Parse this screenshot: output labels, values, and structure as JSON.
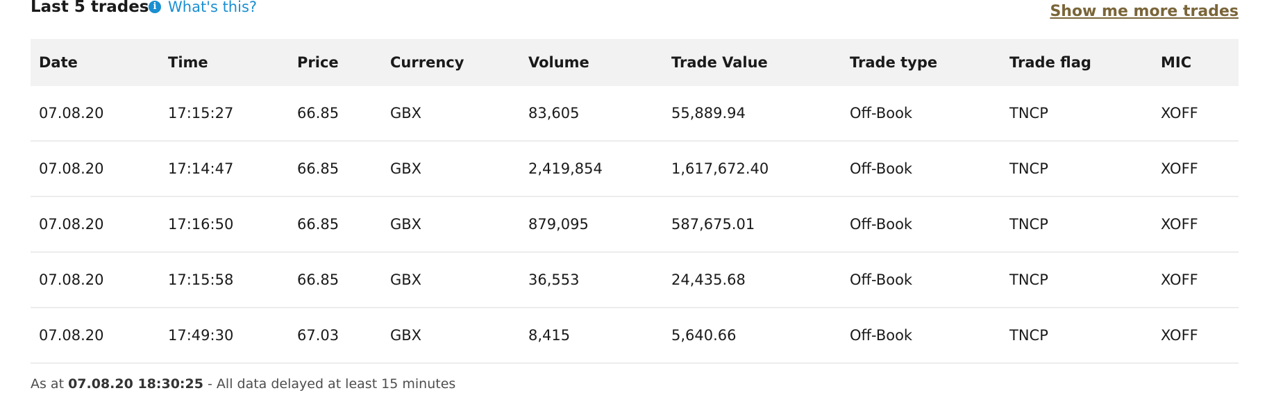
{
  "section": {
    "title": "Last 5 trades",
    "info_link": "What's this?",
    "more_link": "Show me more trades"
  },
  "table": {
    "columns": [
      "Date",
      "Time",
      "Price",
      "Currency",
      "Volume",
      "Trade Value",
      "Trade type",
      "Trade flag",
      "MIC"
    ],
    "rows": [
      [
        "07.08.20",
        "17:15:27",
        "66.85",
        "GBX",
        "83,605",
        "55,889.94",
        "Off-Book",
        "TNCP",
        "XOFF"
      ],
      [
        "07.08.20",
        "17:14:47",
        "66.85",
        "GBX",
        "2,419,854",
        "1,617,672.40",
        "Off-Book",
        "TNCP",
        "XOFF"
      ],
      [
        "07.08.20",
        "17:16:50",
        "66.85",
        "GBX",
        "879,095",
        "587,675.01",
        "Off-Book",
        "TNCP",
        "XOFF"
      ],
      [
        "07.08.20",
        "17:15:58",
        "66.85",
        "GBX",
        "36,553",
        "24,435.68",
        "Off-Book",
        "TNCP",
        "XOFF"
      ],
      [
        "07.08.20",
        "17:49:30",
        "67.03",
        "GBX",
        "8,415",
        "5,640.66",
        "Off-Book",
        "TNCP",
        "XOFF"
      ]
    ]
  },
  "footnote": {
    "prefix": "As at",
    "timestamp": "07.08.20 18:30:25",
    "suffix": "- All data delayed at least 15 minutes"
  },
  "icons": {
    "info": "info-icon"
  },
  "colors": {
    "link_blue": "#1a8fd1",
    "more_link_brown": "#7a6539",
    "header_bg": "#f2f2f2"
  }
}
